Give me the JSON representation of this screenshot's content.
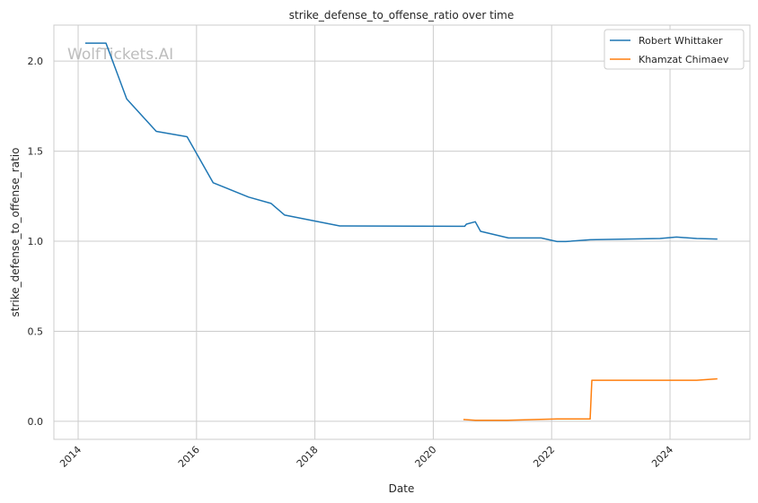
{
  "chart_data": {
    "type": "line",
    "title": "strike_defense_to_offense_ratio over time",
    "xlabel": "Date",
    "ylabel": "strike_defense_to_offense_ratio",
    "xlim": [
      2013.59,
      2025.35
    ],
    "ylim": [
      -0.1,
      2.2
    ],
    "x_ticks": [
      2014,
      2016,
      2018,
      2020,
      2022,
      2024
    ],
    "x_tick_labels": [
      "2014",
      "2016",
      "2018",
      "2020",
      "2022",
      "2024"
    ],
    "y_ticks": [
      0.0,
      0.5,
      1.0,
      1.5,
      2.0
    ],
    "y_tick_labels": [
      "0.0",
      "0.5",
      "1.0",
      "1.5",
      "2.0"
    ],
    "grid": true,
    "legend_position": "top-right",
    "watermark": "WolfTickets.AI",
    "series": [
      {
        "name": "Robert Whittaker",
        "color": "#1f77b4",
        "points": [
          [
            2014.12,
            2.1
          ],
          [
            2014.47,
            2.1
          ],
          [
            2014.82,
            1.79
          ],
          [
            2015.32,
            1.61
          ],
          [
            2015.84,
            1.58
          ],
          [
            2016.28,
            1.325
          ],
          [
            2016.88,
            1.245
          ],
          [
            2017.26,
            1.21
          ],
          [
            2017.49,
            1.145
          ],
          [
            2018.42,
            1.085
          ],
          [
            2020.53,
            1.083
          ],
          [
            2020.56,
            1.095
          ],
          [
            2020.71,
            1.108
          ],
          [
            2020.8,
            1.055
          ],
          [
            2021.27,
            1.018
          ],
          [
            2021.82,
            1.018
          ],
          [
            2022.09,
            0.998
          ],
          [
            2022.24,
            0.998
          ],
          [
            2022.65,
            1.008
          ],
          [
            2023.83,
            1.015
          ],
          [
            2024.11,
            1.023
          ],
          [
            2024.45,
            1.015
          ],
          [
            2024.8,
            1.012
          ]
        ]
      },
      {
        "name": "Khamzat Chimaev",
        "color": "#ff7f0e",
        "points": [
          [
            2020.51,
            0.01
          ],
          [
            2020.71,
            0.006
          ],
          [
            2021.25,
            0.006
          ],
          [
            2022.09,
            0.013
          ],
          [
            2022.65,
            0.013
          ],
          [
            2022.68,
            0.228
          ],
          [
            2024.45,
            0.228
          ],
          [
            2024.8,
            0.236
          ]
        ]
      }
    ]
  }
}
